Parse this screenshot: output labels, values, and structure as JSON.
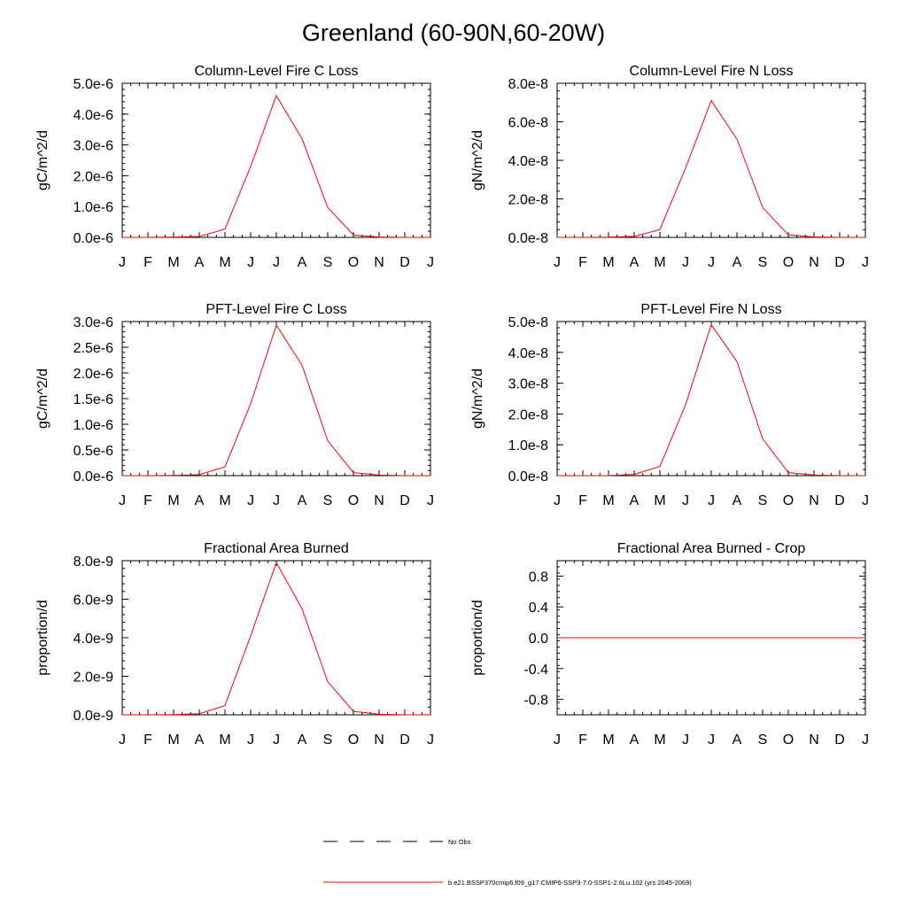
{
  "title": "Greenland (60-90N,60-20W)",
  "months": [
    "J",
    "F",
    "M",
    "A",
    "M",
    "J",
    "J",
    "A",
    "S",
    "O",
    "N",
    "D",
    "J"
  ],
  "colors": {
    "model": "#ff0000",
    "obs": "#000000",
    "axis": "#000000"
  },
  "chart_data": [
    {
      "type": "line",
      "title": "Column-Level Fire C Loss",
      "ylabel": "gC/m^2/d",
      "ylim": [
        0,
        5e-06
      ],
      "yticks": [
        0,
        1e-06,
        2e-06,
        3e-06,
        4e-06,
        5e-06
      ],
      "ytick_labels": [
        "0.0e-6",
        "1.0e-6",
        "2.0e-6",
        "3.0e-6",
        "4.0e-6",
        "5.0e-6"
      ],
      "series": [
        {
          "values": [
            0,
            0,
            1e-08,
            3e-08,
            2.7e-07,
            2.3e-06,
            4.6e-06,
            3.2e-06,
            9.7e-07,
            8e-08,
            1e-08,
            0,
            0
          ]
        }
      ]
    },
    {
      "type": "line",
      "title": "Column-Level Fire N Loss",
      "ylabel": "gN/m^2/d",
      "ylim": [
        0,
        8e-08
      ],
      "yticks": [
        0,
        2e-08,
        4e-08,
        6e-08,
        8e-08
      ],
      "ytick_labels": [
        "0.0e-8",
        "2.0e-8",
        "4.0e-8",
        "6.0e-8",
        "8.0e-8"
      ],
      "series": [
        {
          "values": [
            0,
            0,
            1e-10,
            5e-10,
            4e-09,
            3.6e-08,
            7.1e-08,
            5.1e-08,
            1.55e-08,
            1.3e-09,
            2e-10,
            0,
            0
          ]
        }
      ]
    },
    {
      "type": "line",
      "title": "PFT-Level Fire C Loss",
      "ylabel": "gC/m^2/d",
      "ylim": [
        0,
        3e-06
      ],
      "yticks": [
        0,
        5e-07,
        1e-06,
        1.5e-06,
        2e-06,
        2.5e-06,
        3e-06
      ],
      "ytick_labels": [
        "0.0e-6",
        "0.5e-6",
        "1.0e-6",
        "1.5e-6",
        "2.0e-6",
        "2.5e-6",
        "3.0e-6"
      ],
      "series": [
        {
          "values": [
            0,
            0,
            5e-09,
            2e-08,
            1.7e-07,
            1.4e-06,
            2.93e-06,
            2.15e-06,
            6.8e-07,
            6e-08,
            1e-08,
            0,
            0
          ]
        }
      ]
    },
    {
      "type": "line",
      "title": "PFT-Level Fire N Loss",
      "ylabel": "gN/m^2/d",
      "ylim": [
        0,
        5e-08
      ],
      "yticks": [
        0,
        1e-08,
        2e-08,
        3e-08,
        4e-08,
        5e-08
      ],
      "ytick_labels": [
        "0.0e-8",
        "1.0e-8",
        "2.0e-8",
        "3.0e-8",
        "4.0e-8",
        "5.0e-8"
      ],
      "series": [
        {
          "values": [
            0,
            0,
            5e-11,
            4e-10,
            3e-09,
            2.3e-08,
            4.9e-08,
            3.7e-08,
            1.2e-08,
            1e-09,
            2e-10,
            0,
            0
          ]
        }
      ]
    },
    {
      "type": "line",
      "title": "Fractional Area Burned",
      "ylabel": "proportion/d",
      "ylim": [
        0,
        8e-09
      ],
      "yticks": [
        0,
        2e-09,
        4e-09,
        6e-09,
        8e-09
      ],
      "ytick_labels": [
        "0.0e-9",
        "2.0e-9",
        "4.0e-9",
        "6.0e-9",
        "8.0e-9"
      ],
      "series": [
        {
          "values": [
            0,
            0,
            1e-11,
            5e-11,
            4.8e-10,
            4.1e-09,
            7.9e-09,
            5.5e-09,
            1.72e-09,
            1.8e-10,
            3e-11,
            0,
            0
          ]
        }
      ]
    },
    {
      "type": "line",
      "title": "Fractional Area Burned - Crop",
      "ylabel": "proportion/d",
      "ylim": [
        -1.0,
        1.0
      ],
      "yticks": [
        -0.8,
        -0.4,
        0.0,
        0.4,
        0.8
      ],
      "ytick_labels": [
        "-0.8",
        "-0.4",
        "0.0",
        "0.4",
        "0.8"
      ],
      "series": [
        {
          "values": [
            0,
            0,
            0,
            0,
            0,
            0,
            0,
            0,
            0,
            0,
            0,
            0,
            0
          ]
        }
      ]
    }
  ],
  "legend": {
    "items": [
      {
        "label": "No Obs",
        "style": "dashed",
        "color": "#000000"
      },
      {
        "label": "b.e21.BSSP370cmip6.f09_g17.CMIP6-SSP3-7.0-SSP1-2.6Lu.102 (yrs 2045-2069)",
        "style": "solid",
        "color": "#ff0000"
      }
    ]
  }
}
